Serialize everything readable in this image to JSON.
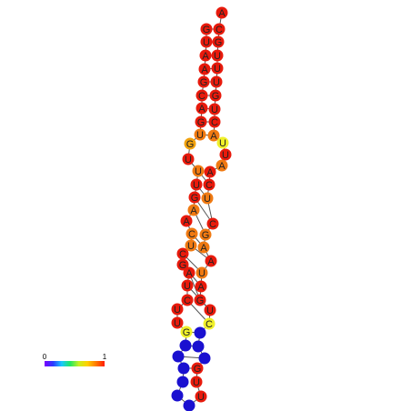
{
  "colors": {
    "red": "#e81a0c",
    "orange": "#f07a12",
    "amber": "#f1a20e",
    "yellow": "#f0f02a",
    "blue": "#1a10d0",
    "backbone": "#555555"
  },
  "scale_bar": {
    "min_label": "0",
    "max_label": "1",
    "gradient": [
      "#7a00ff",
      "#2a3bff",
      "#18c8ff",
      "#22e860",
      "#c8f020",
      "#ffd000",
      "#ff7a00",
      "#ff1a00"
    ]
  },
  "nucleotides": [
    {
      "base": "A",
      "color": "red"
    },
    {
      "base": "C",
      "color": "red"
    },
    {
      "base": "G",
      "color": "red"
    },
    {
      "base": "U",
      "color": "red"
    },
    {
      "base": "U",
      "color": "red"
    },
    {
      "base": "U",
      "color": "red"
    },
    {
      "base": "G",
      "color": "red"
    },
    {
      "base": "U",
      "color": "red"
    },
    {
      "base": "C",
      "color": "red"
    },
    {
      "base": "A",
      "color": "orange"
    },
    {
      "base": "U",
      "color": "yellow"
    },
    {
      "base": "U",
      "color": "red"
    },
    {
      "base": "A",
      "color": "orange"
    },
    {
      "base": "A",
      "color": "red"
    },
    {
      "base": "C",
      "color": "red"
    },
    {
      "base": "U",
      "color": "orange"
    },
    {
      "base": "C",
      "color": "red"
    },
    {
      "base": "G",
      "color": "orange"
    },
    {
      "base": "A",
      "color": "orange"
    },
    {
      "base": "A",
      "color": "red"
    },
    {
      "base": "U",
      "color": "orange"
    },
    {
      "base": "A",
      "color": "red"
    },
    {
      "base": "G",
      "color": "red"
    },
    {
      "base": "U",
      "color": "red"
    },
    {
      "base": "C",
      "color": "yellow"
    },
    {
      "base": "",
      "color": "blue"
    },
    {
      "base": "",
      "color": "blue"
    },
    {
      "base": "",
      "color": "blue"
    },
    {
      "base": "G",
      "color": "red"
    },
    {
      "base": "U",
      "color": "red"
    },
    {
      "base": "U",
      "color": "red"
    },
    {
      "base": "",
      "color": "blue"
    },
    {
      "base": "",
      "color": "blue"
    },
    {
      "base": "",
      "color": "blue"
    },
    {
      "base": "",
      "color": "blue"
    },
    {
      "base": "",
      "color": "blue"
    },
    {
      "base": "",
      "color": "blue"
    },
    {
      "base": "G",
      "color": "yellow"
    },
    {
      "base": "U",
      "color": "red"
    },
    {
      "base": "U",
      "color": "red"
    },
    {
      "base": "C",
      "color": "red"
    },
    {
      "base": "U",
      "color": "red"
    },
    {
      "base": "A",
      "color": "red"
    },
    {
      "base": "G",
      "color": "red"
    },
    {
      "base": "C",
      "color": "red"
    },
    {
      "base": "U",
      "color": "orange"
    },
    {
      "base": "C",
      "color": "orange"
    },
    {
      "base": "A",
      "color": "red"
    },
    {
      "base": "A",
      "color": "orange"
    },
    {
      "base": "G",
      "color": "red"
    },
    {
      "base": "U",
      "color": "red"
    },
    {
      "base": "U",
      "color": "orange"
    },
    {
      "base": "U",
      "color": "red"
    },
    {
      "base": "G",
      "color": "amber"
    },
    {
      "base": "U",
      "color": "orange"
    },
    {
      "base": "G",
      "color": "red"
    },
    {
      "base": "A",
      "color": "red"
    },
    {
      "base": "C",
      "color": "red"
    },
    {
      "base": "G",
      "color": "red"
    },
    {
      "base": "A",
      "color": "red"
    },
    {
      "base": "A",
      "color": "red"
    },
    {
      "base": "U",
      "color": "red"
    },
    {
      "base": "G",
      "color": "red"
    }
  ]
}
